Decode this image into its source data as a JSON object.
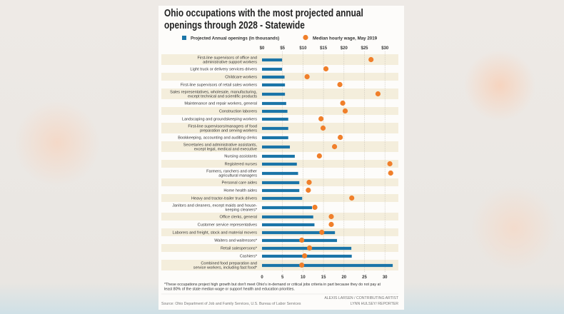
{
  "chart_data": {
    "type": "bar",
    "title": "Ohio occupations with the most projected annual openings through 2028 - Statewide",
    "series": [
      {
        "name": "Projected Annual openings (in thousands)",
        "kind": "bar",
        "color": "#1b75a8",
        "values": [
          4.9,
          4.9,
          5.5,
          5.6,
          5.6,
          5.9,
          6.2,
          6.4,
          6.4,
          6.4,
          6.8,
          8.0,
          8.5,
          8.8,
          9.1,
          9.1,
          9.8,
          12.2,
          12.5,
          12.8,
          17.8,
          18.3,
          21.8,
          21.9,
          31.9
        ]
      },
      {
        "name": "Median hourly wage, May 2019",
        "kind": "dot",
        "color": "#f07f2a",
        "values": [
          26.6,
          15.6,
          11.0,
          19.0,
          28.3,
          19.7,
          20.3,
          14.4,
          14.9,
          19.1,
          17.7,
          14.0,
          31.2,
          31.4,
          11.5,
          11.3,
          21.9,
          12.9,
          16.9,
          16.9,
          14.6,
          9.7,
          11.6,
          10.4,
          9.7
        ]
      }
    ],
    "categories": [
      [
        "First-line supervisors of office and",
        "administrative support workers"
      ],
      [
        "Light truck or delivery services drivers"
      ],
      [
        "Childcare workers"
      ],
      [
        "First-line supervisors of retail sales workers"
      ],
      [
        "Sales representatives, wholesale, manufacturing,",
        "except technical and scientific products"
      ],
      [
        "Maintenance and repair workers, general"
      ],
      [
        "Construction laborers"
      ],
      [
        "Landscaping and groundskeeping workers"
      ],
      [
        "First-line supervisors/managers of food",
        "preparation and serving workers"
      ],
      [
        "Bookkeeping, accounting and auditing clerks"
      ],
      [
        "Secretaries and administrative assistants,",
        "except legal, medical and executive"
      ],
      [
        "Nursing assistants"
      ],
      [
        "Registered nurses"
      ],
      [
        "Farmers, ranchers and other",
        "agricultural managers"
      ],
      [
        "Personal care aides"
      ],
      [
        "Home health aides"
      ],
      [
        "Heavy and tractor-trailer truck drivers"
      ],
      [
        "Janitors and cleaners, except maids and house-",
        "keeping cleaners*"
      ],
      [
        "Office clerks, general"
      ],
      [
        "Customer service representatives"
      ],
      [
        "Laborers and freight, stock and material movers"
      ],
      [
        "Waiters and waitresses*"
      ],
      [
        "Retail salespersons*"
      ],
      [
        "Cashiers*"
      ],
      [
        "Combined food preparation and",
        "service workers, including fast food*"
      ]
    ],
    "xlim": [
      0,
      32
    ],
    "top_ticks": [
      "$0",
      "$5",
      "$10",
      "$15",
      "$20",
      "$25",
      "$30"
    ],
    "bottom_ticks": [
      "0",
      "5",
      "10",
      "15",
      "20",
      "25",
      "30"
    ],
    "tick_values": [
      0,
      5,
      10,
      15,
      20,
      25,
      30
    ],
    "grid": "vertical dashed",
    "legend_position": "top",
    "stripe_color": "#f4eedc",
    "footnote": [
      "*These occupations project high growth but don't meet Ohio's in-demand or critical jobs criteria in part because they do not pay at",
      "least 80% of the state median wage or support health and education priorities."
    ],
    "source": "Source: Ohio Department of Job and Family Services, U.S. Bureau of Labor Services",
    "credits": [
      "ALEXIS LARSEN / CONTRIBUTING ARTIST",
      "LYNN HULSEY/ REPORTER"
    ]
  }
}
